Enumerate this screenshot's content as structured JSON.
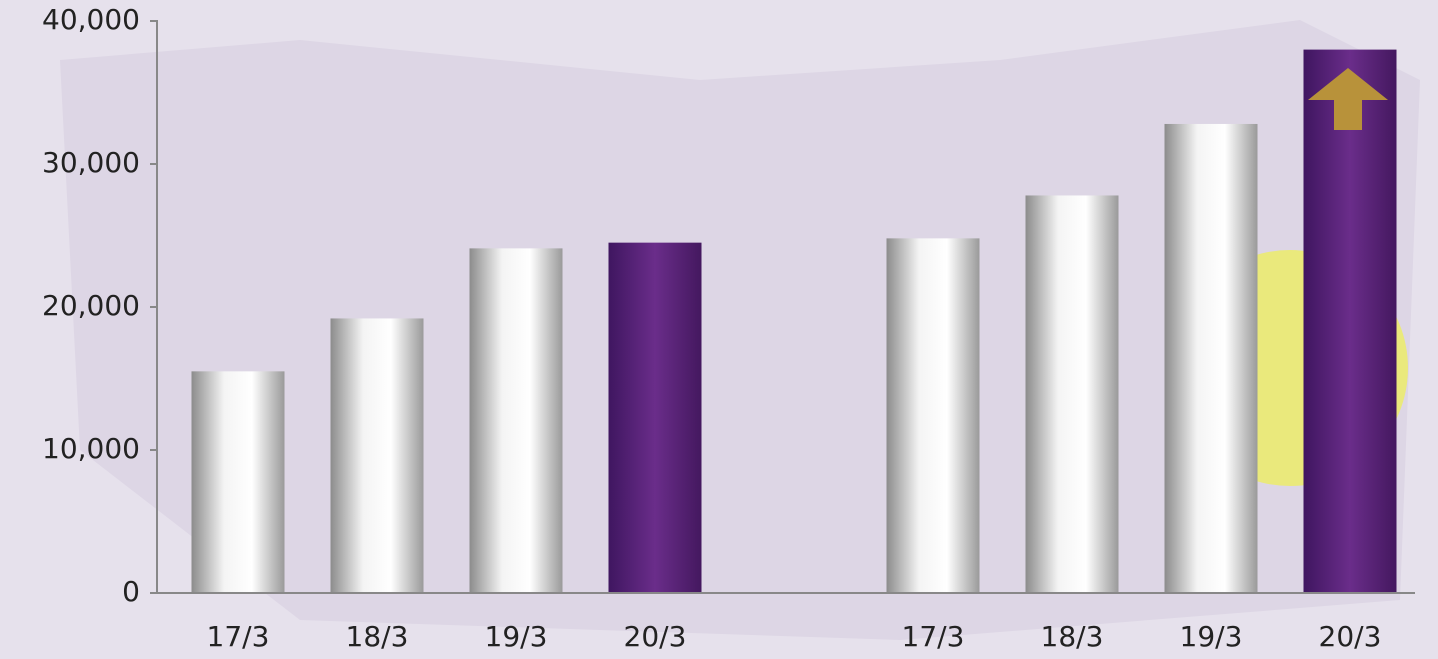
{
  "chart_data": {
    "type": "bar",
    "categories": [
      "17/3",
      "18/3",
      "19/3",
      "20/3",
      null,
      "17/3",
      "18/3",
      "19/3",
      "20/3"
    ],
    "values": [
      15500,
      19200,
      24100,
      24500,
      null,
      24800,
      27800,
      32800,
      38000
    ],
    "colors": [
      "silver",
      "silver",
      "silver",
      "purple",
      null,
      "silver",
      "silver",
      "silver",
      "purple"
    ],
    "ylim": [
      0,
      40000
    ],
    "yticks": [
      0,
      {
        "value": 10000,
        "label": "10,000"
      },
      {
        "value": 20000,
        "label": "20,000"
      },
      {
        "value": 30000,
        "label": "30,000"
      },
      {
        "value": 40000,
        "label": "40,000"
      }
    ]
  }
}
